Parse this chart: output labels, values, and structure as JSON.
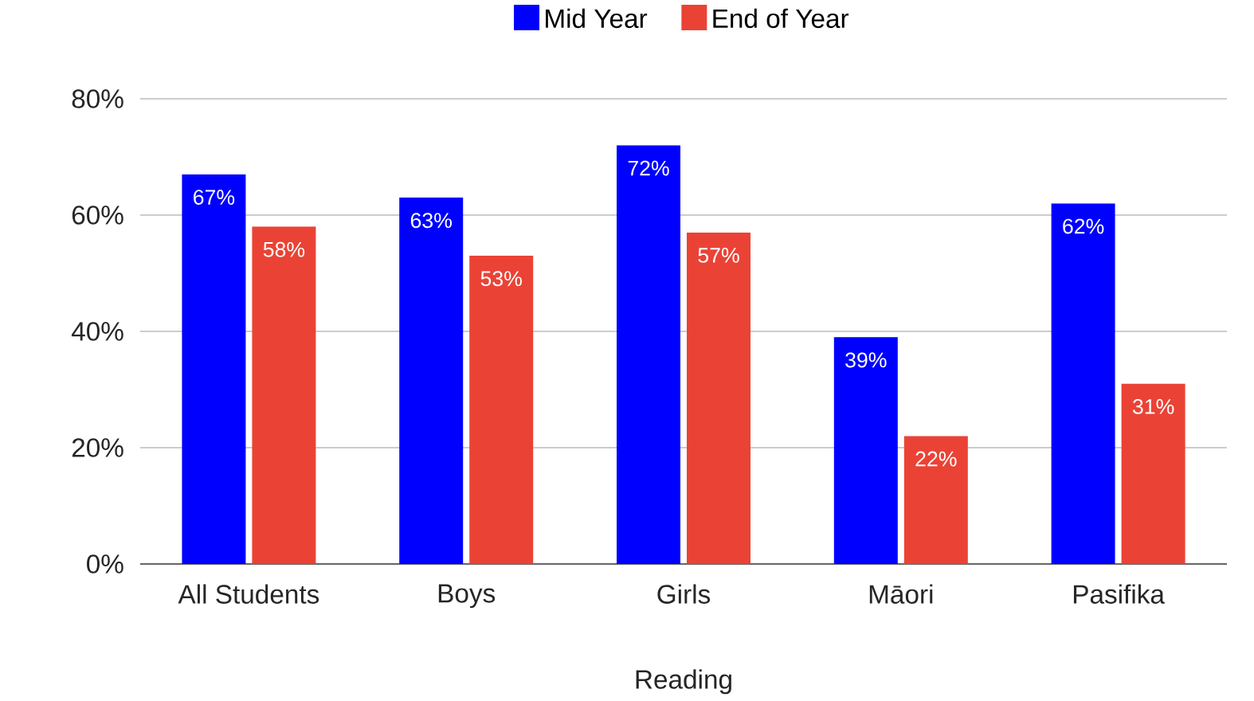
{
  "chart_data": {
    "type": "bar",
    "xlabel": "Reading",
    "categories": [
      "All Students",
      "Boys",
      "Girls",
      "Māori",
      "Pasifika"
    ],
    "series": [
      {
        "name": "Mid Year",
        "color": "#0000ff",
        "values": [
          67,
          63,
          72,
          39,
          62
        ],
        "value_labels": [
          "67%",
          "63%",
          "72%",
          "39%",
          "62%"
        ]
      },
      {
        "name": "End of Year",
        "color": "#ea4335",
        "values": [
          58,
          53,
          57,
          22,
          31
        ],
        "value_labels": [
          "58%",
          "53%",
          "57%",
          "22%",
          "31%"
        ]
      }
    ],
    "ylim": [
      0,
      80
    ],
    "yticks": [
      {
        "value": 0,
        "label": "0%"
      },
      {
        "value": 20,
        "label": "20%"
      },
      {
        "value": 40,
        "label": "40%"
      },
      {
        "value": 60,
        "label": "60%"
      },
      {
        "value": 80,
        "label": "80%"
      }
    ],
    "grid": "y",
    "legend": "top"
  }
}
